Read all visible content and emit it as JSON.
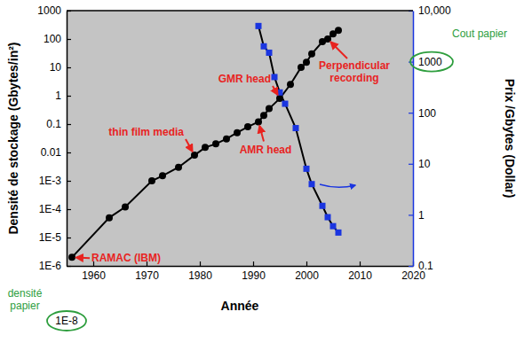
{
  "chart_data": {
    "type": "line",
    "x_label": "Année",
    "y_label": "Densité de stockage (Gbytes/in²)",
    "y2_label": "Prix /Gbytes (Dollar)",
    "log": "y",
    "grid": false,
    "xlim": [
      1955,
      2020
    ],
    "xticks": [
      1960,
      1970,
      1980,
      1990,
      2000,
      2010,
      2020
    ],
    "ylim": [
      1e-06,
      1000
    ],
    "yticks": [
      {
        "value": 1e-06,
        "label": "1E-6"
      },
      {
        "value": 1e-05,
        "label": "1E-5"
      },
      {
        "value": 0.0001,
        "label": "1E-4"
      },
      {
        "value": 0.001,
        "label": "1E-3"
      },
      0.01,
      0.1,
      1,
      10,
      100,
      1000
    ],
    "y2lim": [
      0.1,
      10000
    ],
    "y2ticks": [
      0.1,
      1,
      10,
      100,
      1000,
      {
        "value": 10000,
        "label": "10,000"
      }
    ],
    "series": [
      {
        "x": [
          1956,
          1963,
          1966,
          1971,
          1973,
          1976,
          1979,
          1981,
          1983,
          1985,
          1987,
          1989,
          1991,
          1992,
          1993,
          1995,
          1997,
          1999,
          2000,
          2001,
          2003,
          2004,
          2005,
          2006
        ],
        "values": [
          2e-06,
          5e-05,
          0.00012,
          0.001,
          0.0015,
          0.003,
          0.008,
          0.015,
          0.02,
          0.03,
          0.05,
          0.08,
          0.12,
          0.2,
          0.35,
          0.8,
          2.5,
          10,
          15,
          30,
          80,
          100,
          150,
          200
        ],
        "color": "#000000",
        "marker": "circle",
        "line_style": "solid"
      },
      {
        "x": [
          1991,
          1992,
          1993,
          1994,
          1995,
          1996,
          1998,
          2000,
          2001,
          2003,
          2004,
          2005,
          2006
        ],
        "values": [
          5000,
          2000,
          1500,
          500,
          250,
          150,
          50,
          8,
          4,
          1.5,
          0.9,
          0.6,
          0.45
        ],
        "color": "#1a35e0",
        "marker": "square",
        "line_style": "solid",
        "axis": "y2"
      }
    ],
    "annotations": [
      {
        "text": "RAMAC (IBM)",
        "x": 1956,
        "y": 2e-06
      },
      {
        "text": "thin film media",
        "x": 1979,
        "y": 0.008
      },
      {
        "text": "AMR head",
        "x": 1991,
        "y": 0.12
      },
      {
        "text": "GMR head",
        "x": 1995,
        "y": 0.8
      },
      {
        "text": "Perpendicular recording",
        "x": 2004,
        "y": 100
      }
    ],
    "notes": [
      {
        "text": "Cout papier",
        "value": 1000,
        "axis": "y2"
      },
      {
        "text": "densité papier",
        "label": "1E-8"
      }
    ]
  }
}
